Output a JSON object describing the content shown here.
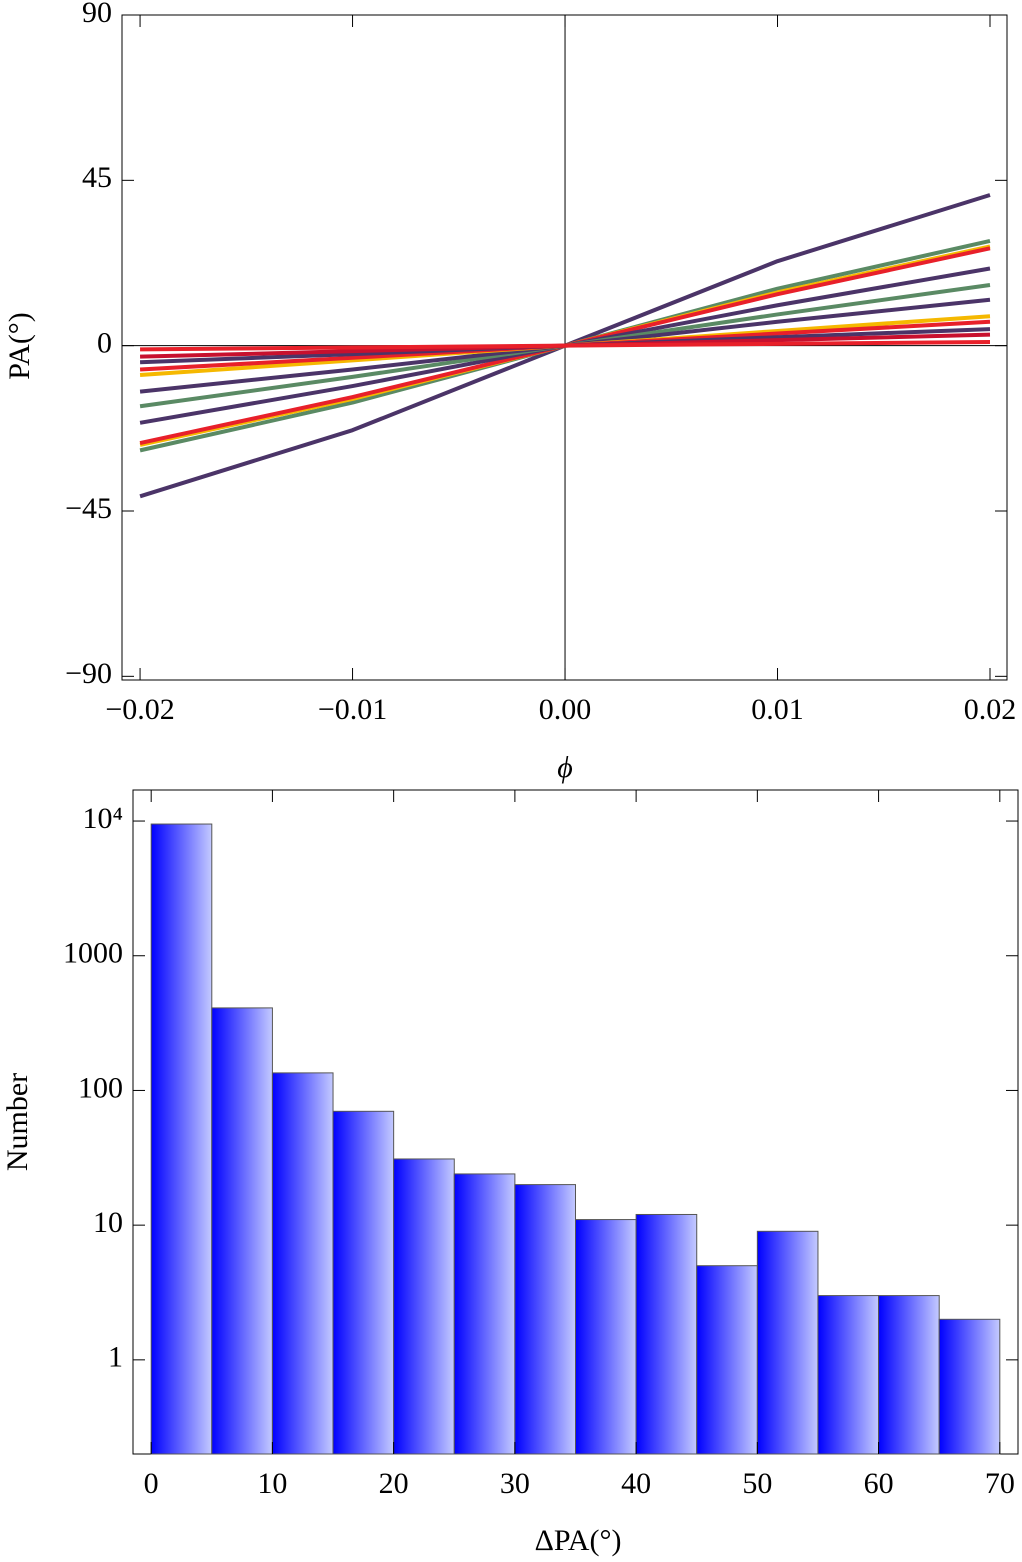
{
  "chart_data": [
    {
      "type": "line",
      "x_label": "ϕ",
      "y_label": "PA(°)",
      "x": [
        -0.02,
        -0.01,
        0,
        0.01,
        0.02
      ],
      "xlim": [
        -0.02085,
        0.0208
      ],
      "ylim": [
        -91,
        90
      ],
      "xticks": [
        {
          "value": -0.02,
          "label": "−0.02"
        },
        {
          "value": -0.01,
          "label": "−0.01"
        },
        {
          "value": 0,
          "label": "0.00"
        },
        {
          "value": 0.01,
          "label": "0.01"
        },
        {
          "value": 0.02,
          "label": "0.02"
        }
      ],
      "yticks": [
        {
          "value": -90,
          "label": "−90"
        },
        {
          "value": -45,
          "label": "−45"
        },
        0,
        45,
        90
      ],
      "series": [
        {
          "color": "#4b3468",
          "values": [
            -41,
            -23,
            0,
            23,
            41
          ]
        },
        {
          "color": "#5a8a64",
          "values": [
            -28.5,
            -15.5,
            0,
            15.5,
            28.5
          ]
        },
        {
          "color": "#f5b800",
          "values": [
            -27,
            -14.5,
            0,
            14.5,
            27
          ]
        },
        {
          "color": "#e8202a",
          "values": [
            -26.5,
            -14,
            0,
            14,
            26.5
          ]
        },
        {
          "color": "#4b3468",
          "values": [
            -21,
            -11,
            0,
            11,
            21
          ]
        },
        {
          "color": "#5a8a64",
          "values": [
            -16.5,
            -8.5,
            0,
            8.5,
            16.5
          ]
        },
        {
          "color": "#4b3468",
          "values": [
            -12.5,
            -6.5,
            0,
            6.5,
            12.5
          ]
        },
        {
          "color": "#f5b800",
          "values": [
            -8,
            -4,
            0,
            4,
            8
          ]
        },
        {
          "color": "#e8202a",
          "values": [
            -6.5,
            -3.3,
            0,
            3.3,
            6.5
          ]
        },
        {
          "color": "#4b3468",
          "values": [
            -4.5,
            -2.3,
            0,
            2.3,
            4.5
          ]
        },
        {
          "color": "#c8102e",
          "values": [
            -3,
            -1.5,
            0,
            1.5,
            3
          ]
        },
        {
          "color": "#e8202a",
          "values": [
            -1,
            -0.5,
            0,
            0.5,
            1
          ]
        }
      ]
    },
    {
      "type": "histogram",
      "x_label": "ΔPA(°)",
      "y_label": "Number",
      "bins": [
        0,
        5,
        10,
        15,
        20,
        25,
        30,
        35,
        40,
        45,
        50,
        55,
        60,
        65,
        70
      ],
      "values": [
        9500,
        410,
        135,
        70,
        31,
        24,
        20,
        11,
        12,
        5,
        9,
        3,
        3,
        2
      ],
      "log_y": true,
      "gradient": [
        "#0000ff",
        "#c4caff"
      ],
      "xlim": [
        -1.5,
        71.5
      ],
      "ylim": [
        0.2,
        17000
      ],
      "xticks": [
        0,
        10,
        20,
        30,
        40,
        50,
        60,
        70
      ],
      "yticks": [
        1,
        10,
        100,
        1000,
        {
          "value": 10000,
          "label": "10⁴"
        }
      ]
    }
  ]
}
